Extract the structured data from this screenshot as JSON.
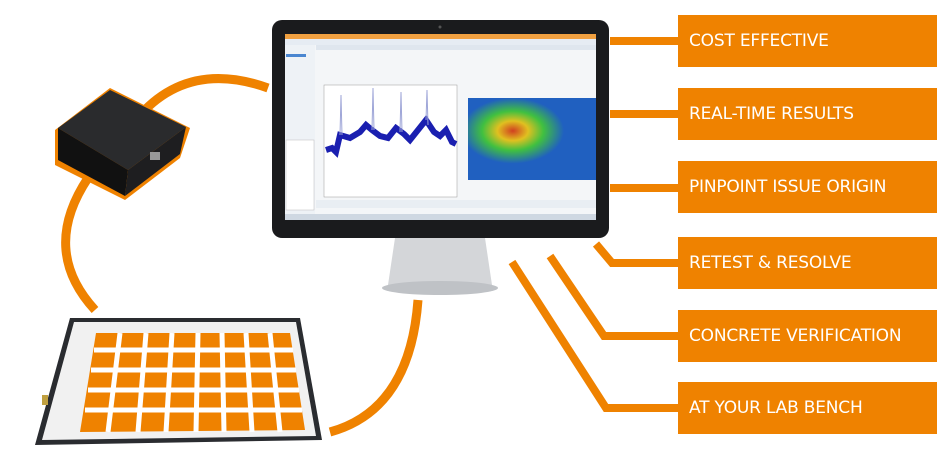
{
  "accent_color": "#ef8200",
  "features": [
    {
      "label": "COST EFFECTIVE"
    },
    {
      "label": "REAL-TIME RESULTS"
    },
    {
      "label": "PINPOINT ISSUE ORIGIN"
    },
    {
      "label": "RETEST & RESOLVE"
    },
    {
      "label": "CONCRETE VERIFICATION"
    },
    {
      "label": "AT YOUR LAB BENCH"
    }
  ],
  "images": {
    "monitor": "monitor-with-measurement-software",
    "device": "sensor-reader-device",
    "board": "sensor-grid-board"
  }
}
